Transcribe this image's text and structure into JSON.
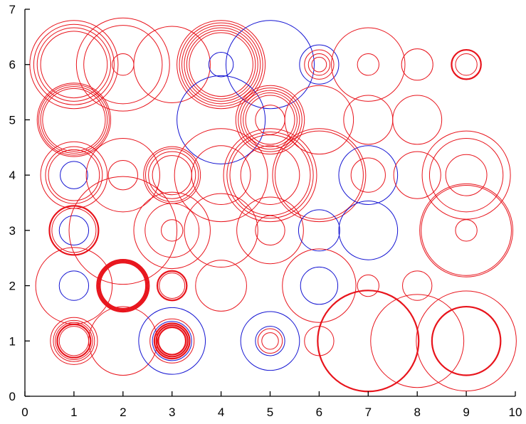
{
  "chart_data": {
    "type": "scatter",
    "title": "",
    "xlabel": "",
    "ylabel": "",
    "xlim": [
      0,
      10
    ],
    "ylim": [
      0,
      7
    ],
    "xticks": [
      "0",
      "1",
      "2",
      "3",
      "4",
      "5",
      "6",
      "7",
      "8",
      "9",
      "10"
    ],
    "yticks": [
      "0",
      "1",
      "2",
      "3",
      "4",
      "5",
      "6",
      "7"
    ],
    "grid": false,
    "legend": "none",
    "colors": {
      "red": "#e8141c",
      "blue": "#1414d2",
      "axis": "#000000"
    },
    "marker": "hollow-circle",
    "points": [
      {
        "x": 1,
        "y": 6,
        "r": 0.9,
        "c": "red",
        "w": 1
      },
      {
        "x": 1,
        "y": 6,
        "r": 0.82,
        "c": "red",
        "w": 1
      },
      {
        "x": 1,
        "y": 6,
        "r": 0.75,
        "c": "red",
        "w": 1
      },
      {
        "x": 1,
        "y": 6,
        "r": 0.68,
        "c": "red",
        "w": 1
      },
      {
        "x": 2,
        "y": 6,
        "r": 0.95,
        "c": "red",
        "w": 1
      },
      {
        "x": 2,
        "y": 6,
        "r": 0.8,
        "c": "red",
        "w": 1
      },
      {
        "x": 2,
        "y": 6,
        "r": 0.22,
        "c": "red",
        "w": 1
      },
      {
        "x": 3,
        "y": 6,
        "r": 0.78,
        "c": "red",
        "w": 1
      },
      {
        "x": 4,
        "y": 6,
        "r": 0.9,
        "c": "red",
        "w": 1
      },
      {
        "x": 4,
        "y": 6,
        "r": 0.85,
        "c": "red",
        "w": 1
      },
      {
        "x": 4,
        "y": 6,
        "r": 0.8,
        "c": "red",
        "w": 1
      },
      {
        "x": 4,
        "y": 6,
        "r": 0.75,
        "c": "red",
        "w": 1
      },
      {
        "x": 4,
        "y": 6,
        "r": 0.7,
        "c": "red",
        "w": 1
      },
      {
        "x": 4,
        "y": 6,
        "r": 0.65,
        "c": "red",
        "w": 1
      },
      {
        "x": 4,
        "y": 6,
        "r": 0.25,
        "c": "blue",
        "w": 1
      },
      {
        "x": 5,
        "y": 6,
        "r": 0.9,
        "c": "blue",
        "w": 1
      },
      {
        "x": 6,
        "y": 6,
        "r": 0.4,
        "c": "blue",
        "w": 1
      },
      {
        "x": 6,
        "y": 6,
        "r": 0.3,
        "c": "red",
        "w": 1
      },
      {
        "x": 6,
        "y": 6,
        "r": 0.22,
        "c": "red",
        "w": 1
      },
      {
        "x": 6,
        "y": 6,
        "r": 0.15,
        "c": "red",
        "w": 1
      },
      {
        "x": 7,
        "y": 6,
        "r": 0.75,
        "c": "red",
        "w": 1
      },
      {
        "x": 7,
        "y": 6,
        "r": 0.22,
        "c": "red",
        "w": 1
      },
      {
        "x": 8,
        "y": 6,
        "r": 0.32,
        "c": "red",
        "w": 1
      },
      {
        "x": 9,
        "y": 6,
        "r": 0.3,
        "c": "red",
        "w": 2
      },
      {
        "x": 9,
        "y": 6,
        "r": 0.22,
        "c": "red",
        "w": 1
      },
      {
        "x": 1,
        "y": 5,
        "r": 0.75,
        "c": "red",
        "w": 1
      },
      {
        "x": 1,
        "y": 5,
        "r": 0.72,
        "c": "red",
        "w": 1
      },
      {
        "x": 1,
        "y": 5,
        "r": 0.68,
        "c": "red",
        "w": 1
      },
      {
        "x": 1,
        "y": 5,
        "r": 0.64,
        "c": "red",
        "w": 1
      },
      {
        "x": 4,
        "y": 5,
        "r": 0.9,
        "c": "blue",
        "w": 1
      },
      {
        "x": 5,
        "y": 5,
        "r": 0.7,
        "c": "red",
        "w": 1
      },
      {
        "x": 5,
        "y": 5,
        "r": 0.65,
        "c": "red",
        "w": 1
      },
      {
        "x": 5,
        "y": 5,
        "r": 0.6,
        "c": "red",
        "w": 1
      },
      {
        "x": 5,
        "y": 5,
        "r": 0.55,
        "c": "red",
        "w": 1
      },
      {
        "x": 5,
        "y": 5,
        "r": 0.5,
        "c": "red",
        "w": 1
      },
      {
        "x": 5,
        "y": 5,
        "r": 0.3,
        "c": "red",
        "w": 1
      },
      {
        "x": 6,
        "y": 5,
        "r": 0.7,
        "c": "red",
        "w": 1
      },
      {
        "x": 7,
        "y": 5,
        "r": 0.5,
        "c": "red",
        "w": 1
      },
      {
        "x": 8,
        "y": 5,
        "r": 0.5,
        "c": "red",
        "w": 1
      },
      {
        "x": 1,
        "y": 4,
        "r": 0.68,
        "c": "red",
        "w": 1
      },
      {
        "x": 1,
        "y": 4,
        "r": 0.58,
        "c": "red",
        "w": 1
      },
      {
        "x": 1,
        "y": 4,
        "r": 0.52,
        "c": "red",
        "w": 1
      },
      {
        "x": 1,
        "y": 4,
        "r": 0.28,
        "c": "blue",
        "w": 1
      },
      {
        "x": 2,
        "y": 4,
        "r": 0.75,
        "c": "red",
        "w": 1
      },
      {
        "x": 2,
        "y": 4,
        "r": 0.3,
        "c": "red",
        "w": 1
      },
      {
        "x": 3,
        "y": 4,
        "r": 0.58,
        "c": "red",
        "w": 1
      },
      {
        "x": 3,
        "y": 4,
        "r": 0.54,
        "c": "red",
        "w": 1
      },
      {
        "x": 3,
        "y": 4,
        "r": 0.48,
        "c": "red",
        "w": 1
      },
      {
        "x": 3,
        "y": 4,
        "r": 0.4,
        "c": "red",
        "w": 1
      },
      {
        "x": 4,
        "y": 4,
        "r": 0.95,
        "c": "red",
        "w": 1
      },
      {
        "x": 4,
        "y": 4,
        "r": 0.6,
        "c": "red",
        "w": 1
      },
      {
        "x": 5,
        "y": 4,
        "r": 0.95,
        "c": "red",
        "w": 1
      },
      {
        "x": 5,
        "y": 4,
        "r": 0.88,
        "c": "red",
        "w": 1
      },
      {
        "x": 5,
        "y": 4,
        "r": 0.82,
        "c": "red",
        "w": 1
      },
      {
        "x": 5,
        "y": 4,
        "r": 0.6,
        "c": "red",
        "w": 1
      },
      {
        "x": 6,
        "y": 4,
        "r": 0.95,
        "c": "red",
        "w": 1
      },
      {
        "x": 6,
        "y": 4,
        "r": 0.9,
        "c": "red",
        "w": 1
      },
      {
        "x": 7,
        "y": 4,
        "r": 0.6,
        "c": "blue",
        "w": 1
      },
      {
        "x": 7,
        "y": 4,
        "r": 0.35,
        "c": "red",
        "w": 1
      },
      {
        "x": 8,
        "y": 4,
        "r": 0.48,
        "c": "red",
        "w": 1
      },
      {
        "x": 9,
        "y": 4,
        "r": 0.9,
        "c": "red",
        "w": 1
      },
      {
        "x": 9,
        "y": 4,
        "r": 0.75,
        "c": "red",
        "w": 1
      },
      {
        "x": 9,
        "y": 4,
        "r": 0.42,
        "c": "red",
        "w": 1
      },
      {
        "x": 1,
        "y": 3,
        "r": 0.5,
        "c": "red",
        "w": 2
      },
      {
        "x": 1,
        "y": 3,
        "r": 0.45,
        "c": "red",
        "w": 1
      },
      {
        "x": 1,
        "y": 3,
        "r": 0.3,
        "c": "blue",
        "w": 1
      },
      {
        "x": 2,
        "y": 3,
        "r": 1.1,
        "c": "red",
        "w": 1
      },
      {
        "x": 3,
        "y": 3,
        "r": 0.78,
        "c": "red",
        "w": 1
      },
      {
        "x": 3,
        "y": 3,
        "r": 0.55,
        "c": "red",
        "w": 1
      },
      {
        "x": 3,
        "y": 3,
        "r": 0.22,
        "c": "red",
        "w": 1
      },
      {
        "x": 4,
        "y": 3,
        "r": 0.75,
        "c": "red",
        "w": 1
      },
      {
        "x": 5,
        "y": 3,
        "r": 0.68,
        "c": "red",
        "w": 1
      },
      {
        "x": 5,
        "y": 3,
        "r": 0.3,
        "c": "red",
        "w": 1
      },
      {
        "x": 6,
        "y": 3,
        "r": 0.42,
        "c": "blue",
        "w": 1
      },
      {
        "x": 7,
        "y": 3,
        "r": 0.6,
        "c": "blue",
        "w": 1
      },
      {
        "x": 9,
        "y": 3,
        "r": 0.95,
        "c": "red",
        "w": 1
      },
      {
        "x": 9,
        "y": 3,
        "r": 0.92,
        "c": "red",
        "w": 1
      },
      {
        "x": 9,
        "y": 3,
        "r": 0.22,
        "c": "red",
        "w": 1
      },
      {
        "x": 1,
        "y": 2,
        "r": 0.78,
        "c": "red",
        "w": 1
      },
      {
        "x": 1,
        "y": 2,
        "r": 0.3,
        "c": "blue",
        "w": 1
      },
      {
        "x": 2,
        "y": 2,
        "r": 0.53,
        "c": "red",
        "w": 2
      },
      {
        "x": 2,
        "y": 2,
        "r": 0.5,
        "c": "red",
        "w": 2
      },
      {
        "x": 2,
        "y": 2,
        "r": 0.47,
        "c": "red",
        "w": 2
      },
      {
        "x": 3,
        "y": 2,
        "r": 0.3,
        "c": "red",
        "w": 2
      },
      {
        "x": 3,
        "y": 2,
        "r": 0.26,
        "c": "red",
        "w": 1
      },
      {
        "x": 4,
        "y": 2,
        "r": 0.52,
        "c": "red",
        "w": 1
      },
      {
        "x": 6,
        "y": 2,
        "r": 0.75,
        "c": "red",
        "w": 1
      },
      {
        "x": 6,
        "y": 2,
        "r": 0.38,
        "c": "blue",
        "w": 1
      },
      {
        "x": 7,
        "y": 2,
        "r": 0.22,
        "c": "red",
        "w": 1
      },
      {
        "x": 8,
        "y": 2,
        "r": 0.3,
        "c": "red",
        "w": 1
      },
      {
        "x": 1,
        "y": 1,
        "r": 0.48,
        "c": "red",
        "w": 1
      },
      {
        "x": 1,
        "y": 1,
        "r": 0.42,
        "c": "red",
        "w": 1
      },
      {
        "x": 1,
        "y": 1,
        "r": 0.38,
        "c": "red",
        "w": 1
      },
      {
        "x": 1,
        "y": 1,
        "r": 0.34,
        "c": "red",
        "w": 2
      },
      {
        "x": 1,
        "y": 1,
        "r": 0.3,
        "c": "red",
        "w": 1
      },
      {
        "x": 2,
        "y": 1,
        "r": 0.7,
        "c": "red",
        "w": 1
      },
      {
        "x": 3,
        "y": 1,
        "r": 0.68,
        "c": "blue",
        "w": 1
      },
      {
        "x": 3,
        "y": 1,
        "r": 0.45,
        "c": "red",
        "w": 1
      },
      {
        "x": 3,
        "y": 1,
        "r": 0.4,
        "c": "blue",
        "w": 1
      },
      {
        "x": 3,
        "y": 1,
        "r": 0.36,
        "c": "red",
        "w": 2
      },
      {
        "x": 3,
        "y": 1,
        "r": 0.32,
        "c": "red",
        "w": 2
      },
      {
        "x": 3,
        "y": 1,
        "r": 0.28,
        "c": "red",
        "w": 2
      },
      {
        "x": 5,
        "y": 1,
        "r": 0.6,
        "c": "blue",
        "w": 1
      },
      {
        "x": 5,
        "y": 1,
        "r": 0.3,
        "c": "blue",
        "w": 1
      },
      {
        "x": 5,
        "y": 1,
        "r": 0.25,
        "c": "red",
        "w": 1
      },
      {
        "x": 5,
        "y": 1,
        "r": 0.17,
        "c": "red",
        "w": 1
      },
      {
        "x": 6,
        "y": 1,
        "r": 0.3,
        "c": "red",
        "w": 1
      },
      {
        "x": 7,
        "y": 1,
        "r": 1.03,
        "c": "red",
        "w": 2
      },
      {
        "x": 8,
        "y": 1,
        "r": 0.95,
        "c": "red",
        "w": 1
      },
      {
        "x": 9,
        "y": 1,
        "r": 1.02,
        "c": "red",
        "w": 1
      },
      {
        "x": 9,
        "y": 1,
        "r": 0.7,
        "c": "red",
        "w": 2
      }
    ]
  }
}
